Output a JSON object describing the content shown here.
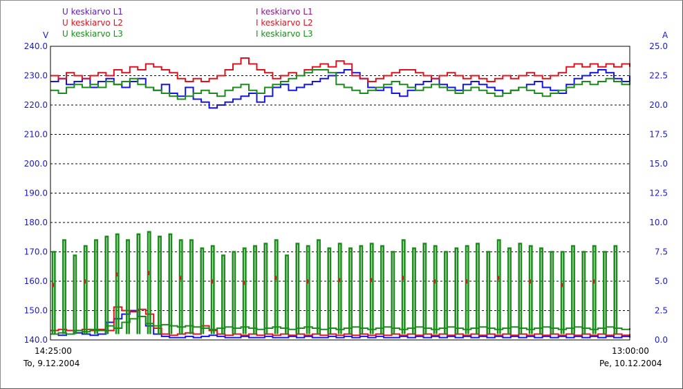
{
  "chart_data": {
    "type": "line",
    "left_unit": "V",
    "right_unit": "A",
    "left_ylim": [
      140,
      240
    ],
    "right_ylim": [
      0,
      25
    ],
    "left_ticks": [
      "240.0",
      "230.0",
      "220.0",
      "210.0",
      "200.0",
      "190.0",
      "180.0",
      "170.0",
      "160.0",
      "150.0",
      "140.0"
    ],
    "right_ticks": [
      "25.0",
      "22.5",
      "20.0",
      "17.5",
      "15.0",
      "12.5",
      "10.0",
      "7.5",
      "5.0",
      "2.5",
      "0.0"
    ],
    "grid": "horizontal dashed",
    "x_start_time": "14:25:00",
    "x_start_date": "To, 9.12.2004",
    "x_end_time": "13:00:00",
    "x_end_date": "Pe, 10.12.2004",
    "legend_left": [
      {
        "name": "U keskiarvo L1",
        "color": "#5a1ab4"
      },
      {
        "name": "U keskiarvo L2",
        "color": "#e0121e"
      },
      {
        "name": "U keskiarvo L3",
        "color": "#1a8c1a"
      }
    ],
    "legend_right": [
      {
        "name": "I keskiarvo L1",
        "color": "#8c148c"
      },
      {
        "name": "I keskiarvo L2",
        "color": "#e0121e"
      },
      {
        "name": "I keskiarvo L3",
        "color": "#1a8c1a"
      }
    ],
    "series": [
      {
        "name": "U keskiarvo L1",
        "color": "#1414e6",
        "axis": "left",
        "values": [
          228,
          229,
          227,
          228,
          229,
          226,
          228,
          229,
          227,
          226,
          228,
          229,
          226,
          225,
          227,
          224,
          223,
          226,
          222,
          221,
          219,
          220,
          221,
          222,
          223,
          224,
          221,
          223,
          226,
          227,
          225,
          226,
          227,
          228,
          229,
          230,
          231,
          232,
          231,
          229,
          226,
          225,
          226,
          224,
          223,
          225,
          227,
          228,
          229,
          227,
          226,
          225,
          227,
          228,
          227,
          226,
          225,
          224,
          225,
          226,
          227,
          228,
          226,
          225,
          224,
          227,
          229,
          230,
          231,
          232,
          231,
          229,
          228,
          230
        ]
      },
      {
        "name": "U keskiarvo L2",
        "color": "#e0121e",
        "axis": "left",
        "values": [
          230,
          229,
          231,
          230,
          229,
          230,
          231,
          230,
          232,
          231,
          233,
          232,
          234,
          233,
          232,
          231,
          229,
          228,
          229,
          228,
          229,
          230,
          232,
          234,
          236,
          234,
          232,
          231,
          229,
          230,
          231,
          230,
          232,
          233,
          234,
          233,
          235,
          234,
          230,
          229,
          228,
          229,
          230,
          231,
          232,
          232,
          231,
          230,
          229,
          230,
          231,
          230,
          229,
          230,
          229,
          228,
          229,
          230,
          229,
          230,
          231,
          230,
          229,
          230,
          231,
          233,
          234,
          233,
          234,
          233,
          234,
          233,
          234,
          233
        ]
      },
      {
        "name": "U keskiarvo L3",
        "color": "#1a8c1a",
        "axis": "left",
        "values": [
          225,
          224,
          226,
          227,
          226,
          227,
          226,
          228,
          227,
          228,
          229,
          227,
          226,
          225,
          224,
          223,
          222,
          223,
          224,
          225,
          224,
          223,
          225,
          226,
          227,
          225,
          224,
          226,
          227,
          228,
          229,
          230,
          231,
          232,
          232,
          231,
          227,
          226,
          225,
          224,
          225,
          226,
          227,
          228,
          227,
          226,
          225,
          226,
          227,
          226,
          225,
          224,
          225,
          226,
          225,
          224,
          223,
          224,
          225,
          226,
          225,
          224,
          223,
          224,
          225,
          226,
          227,
          228,
          227,
          228,
          229,
          228,
          227,
          228
        ]
      },
      {
        "name": "I keskiarvo L1",
        "color": "#1414e6",
        "axis": "right",
        "values": [
          0.5,
          0.4,
          0.5,
          0.6,
          0.5,
          0.4,
          0.5,
          1.5,
          1.8,
          2.2,
          2.5,
          2.0,
          1.2,
          0.5,
          0.3,
          0.2,
          0.2,
          0.3,
          0.2,
          0.3,
          0.4,
          0.3,
          0.2,
          0.2,
          0.3,
          0.2,
          0.2,
          0.3,
          0.2,
          0.2,
          0.3,
          0.2,
          0.3,
          0.2,
          0.2,
          0.3,
          0.2,
          0.3,
          0.2,
          0.3,
          0.2,
          0.3,
          0.2,
          0.2,
          0.3,
          0.2,
          0.3,
          0.2,
          0.3,
          0.2,
          0.3,
          0.2,
          0.3,
          0.2,
          0.3,
          0.2,
          0.3,
          0.2,
          0.3,
          0.2,
          0.3,
          0.2,
          0.3,
          0.2,
          0.3,
          0.2,
          0.3,
          0.2,
          0.3,
          0.2,
          0.3,
          0.2,
          0.3,
          0.2
        ]
      },
      {
        "name": "I keskiarvo L2",
        "color": "#e0121e",
        "axis": "right",
        "values": [
          0.8,
          0.9,
          0.8,
          0.8,
          0.9,
          0.8,
          0.9,
          0.8,
          2.8,
          2.5,
          2.4,
          2.6,
          2.2,
          1.0,
          0.5,
          0.4,
          0.5,
          0.6,
          0.5,
          1.2,
          0.8,
          0.5,
          0.4,
          0.5,
          0.4,
          0.5,
          0.4,
          0.5,
          0.4,
          0.5,
          0.4,
          0.5,
          0.4,
          0.5,
          0.4,
          0.5,
          0.4,
          0.5,
          0.4,
          0.5,
          0.4,
          0.5,
          0.4,
          0.5,
          0.4,
          0.5,
          0.4,
          0.5,
          0.4,
          0.5,
          0.4,
          0.5,
          0.4,
          0.5,
          0.4,
          0.5,
          0.4,
          0.5,
          0.4,
          0.5,
          0.4,
          0.5,
          0.4,
          0.5,
          0.4,
          0.5,
          0.4,
          0.5,
          0.4,
          0.5,
          0.4,
          0.5,
          0.4,
          0.5
        ]
      },
      {
        "name": "I keskiarvo L3",
        "color": "#1a8c1a",
        "axis": "right",
        "values": [
          0.5,
          0.6,
          0.5,
          0.8,
          0.7,
          0.9,
          0.8,
          1.2,
          1.0,
          1.5,
          1.8,
          2.0,
          1.4,
          1.2,
          1.3,
          1.2,
          1.1,
          1.2,
          1.1,
          1.0,
          0.9,
          1.0,
          1.1,
          1.0,
          1.1,
          1.0,
          0.9,
          1.0,
          1.1,
          1.0,
          0.9,
          1.0,
          1.1,
          1.0,
          0.9,
          1.0,
          0.9,
          1.0,
          1.1,
          1.0,
          0.9,
          1.0,
          1.1,
          1.0,
          0.9,
          1.0,
          1.1,
          1.0,
          0.9,
          1.0,
          1.1,
          1.0,
          0.9,
          1.0,
          1.1,
          1.0,
          0.9,
          1.0,
          1.1,
          1.0,
          0.9,
          1.0,
          1.1,
          1.0,
          0.9,
          1.0,
          1.1,
          1.0,
          0.9,
          1.0,
          1.1,
          1.0,
          0.9,
          1.0
        ]
      }
    ],
    "current_pulses": {
      "series": "I keskiarvo L3",
      "base": 0.5,
      "peaks": [
        7.5,
        8.5,
        7.2,
        8.0,
        8.5,
        8.8,
        9.0,
        8.5,
        9.0,
        9.2,
        8.8,
        9.0,
        8.5,
        8.5,
        7.8,
        8.0,
        7.2,
        7.5,
        7.8,
        8.0,
        8.2,
        8.5,
        7.2,
        8.2,
        8.0,
        8.5,
        7.8,
        8.2,
        7.8,
        8.0,
        8.2,
        8.0,
        7.5,
        8.5,
        7.8,
        8.2,
        8.0,
        7.5,
        7.8,
        8.0,
        8.2,
        7.5,
        8.5,
        7.8,
        8.2,
        8.0,
        7.8,
        7.5,
        7.5,
        8.0,
        7.5,
        8.0,
        7.5,
        8.0
      ]
    }
  }
}
